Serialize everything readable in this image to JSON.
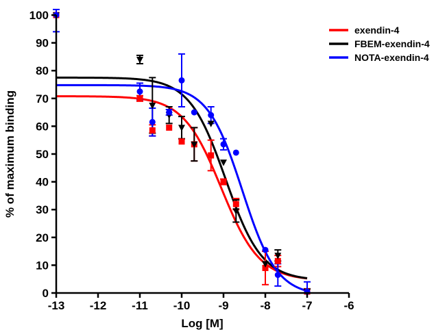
{
  "chart_data": {
    "type": "scatter",
    "xlabel": "Log [M]",
    "ylabel": "% of maximum binding",
    "xlim": [
      -13,
      -6
    ],
    "ylim": [
      0,
      100
    ],
    "x_ticks": [
      -13,
      -12,
      -11,
      -10,
      -9,
      -8,
      -7,
      -6
    ],
    "y_ticks": [
      0,
      10,
      20,
      30,
      40,
      50,
      60,
      70,
      80,
      90,
      100
    ],
    "grid": false,
    "legend_position": "top-right",
    "series": [
      {
        "name": "exendin-4",
        "color": "#ff0000",
        "marker": "square",
        "points": [
          {
            "x": -13,
            "y": 100,
            "err": 0
          },
          {
            "x": -11,
            "y": 70,
            "err": 1
          },
          {
            "x": -10.7,
            "y": 58.5,
            "err": 2
          },
          {
            "x": -10.3,
            "y": 59.5,
            "err": 0
          },
          {
            "x": -10,
            "y": 54.5,
            "err": 0
          },
          {
            "x": -9.7,
            "y": 53.5,
            "err": 6
          },
          {
            "x": -9.3,
            "y": 49.5,
            "err": 5.5
          },
          {
            "x": -9,
            "y": 40,
            "err": 1
          },
          {
            "x": -8.7,
            "y": 32,
            "err": 2
          },
          {
            "x": -8,
            "y": 9,
            "err": 6
          },
          {
            "x": -7.7,
            "y": 11.5,
            "err": 2
          },
          {
            "x": -7,
            "y": 0.5,
            "err": 1
          }
        ],
        "fit": {
          "top": 70.8,
          "bottom": 4.5,
          "log_ic50": -9.05,
          "hill": 0.95
        }
      },
      {
        "name": "FBEM-exendin-4",
        "color": "#000000",
        "marker": "triangle-down",
        "points": [
          {
            "x": -13,
            "y": 100,
            "err": 0
          },
          {
            "x": -11,
            "y": 84,
            "err": 1.5
          },
          {
            "x": -10.7,
            "y": 67.5,
            "err": 10
          },
          {
            "x": -10.3,
            "y": 64,
            "err": 3
          },
          {
            "x": -10,
            "y": 59.5,
            "err": 4
          },
          {
            "x": -9.7,
            "y": 53.5,
            "err": 6
          },
          {
            "x": -9.3,
            "y": 61,
            "err": 0
          },
          {
            "x": -9,
            "y": 47,
            "err": 0
          },
          {
            "x": -8.7,
            "y": 29.5,
            "err": 4
          },
          {
            "x": -8,
            "y": 10.5,
            "err": 0
          },
          {
            "x": -7.7,
            "y": 13.5,
            "err": 2
          },
          {
            "x": -7,
            "y": 0.5,
            "err": 1
          }
        ],
        "fit": {
          "top": 77.5,
          "bottom": 4.5,
          "log_ic50": -8.95,
          "hill": 1.0
        }
      },
      {
        "name": "NOTA-exendin-4",
        "color": "#0000ff",
        "marker": "circle",
        "points": [
          {
            "x": -13,
            "y": 100,
            "err": 6
          },
          {
            "x": -11,
            "y": 72.5,
            "err": 3
          },
          {
            "x": -10.7,
            "y": 61.5,
            "err": 5
          },
          {
            "x": -10.3,
            "y": 65,
            "err": 1
          },
          {
            "x": -10,
            "y": 76.5,
            "err": 9.5
          },
          {
            "x": -9.7,
            "y": 65,
            "err": 0
          },
          {
            "x": -9.3,
            "y": 64,
            "err": 3
          },
          {
            "x": -9,
            "y": 53.5,
            "err": 2
          },
          {
            "x": -8.7,
            "y": 50.5,
            "err": 0
          },
          {
            "x": -8,
            "y": 15.5,
            "err": 0
          },
          {
            "x": -7.7,
            "y": 6.5,
            "err": 4
          },
          {
            "x": -7,
            "y": 0.5,
            "err": 3.5
          }
        ],
        "fit": {
          "top": 74.8,
          "bottom": -1.0,
          "log_ic50": -8.55,
          "hill": 1.05
        }
      }
    ]
  }
}
